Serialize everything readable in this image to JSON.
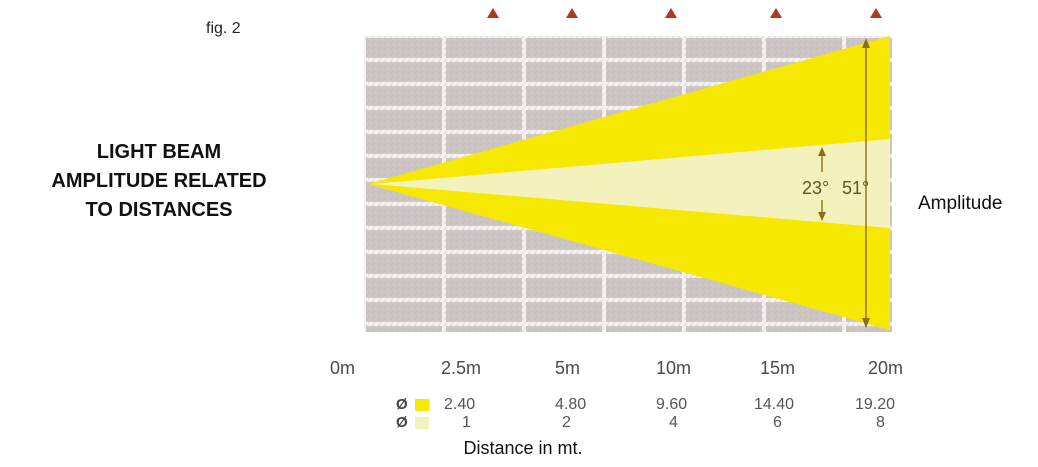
{
  "figure_label": "fig. 2",
  "title_lines": [
    "LIGHT BEAM",
    "AMPLITUDE RELATED",
    "TO DISTANCES"
  ],
  "amplitude_label": "Amplitude",
  "angles": {
    "narrow": "23°",
    "wide": "51°"
  },
  "distances": [
    "0m",
    "2.5m",
    "5m",
    "10m",
    "15m",
    "20m"
  ],
  "diameter_symbol": "Ø",
  "wide_beam_diameters": [
    "2.40",
    "4.80",
    "9.60",
    "14.40",
    "19.20"
  ],
  "narrow_beam_diameters": [
    "1",
    "2",
    "4",
    "6",
    "8"
  ],
  "x_axis_label": "Distance in mt.",
  "colors": {
    "wide_beam": "#f6e800",
    "narrow_beam": "#f3f2bd",
    "wall_brick": "#cdc5c3",
    "mortar": "#f4f1ef",
    "marker": "#b03a1e"
  }
}
